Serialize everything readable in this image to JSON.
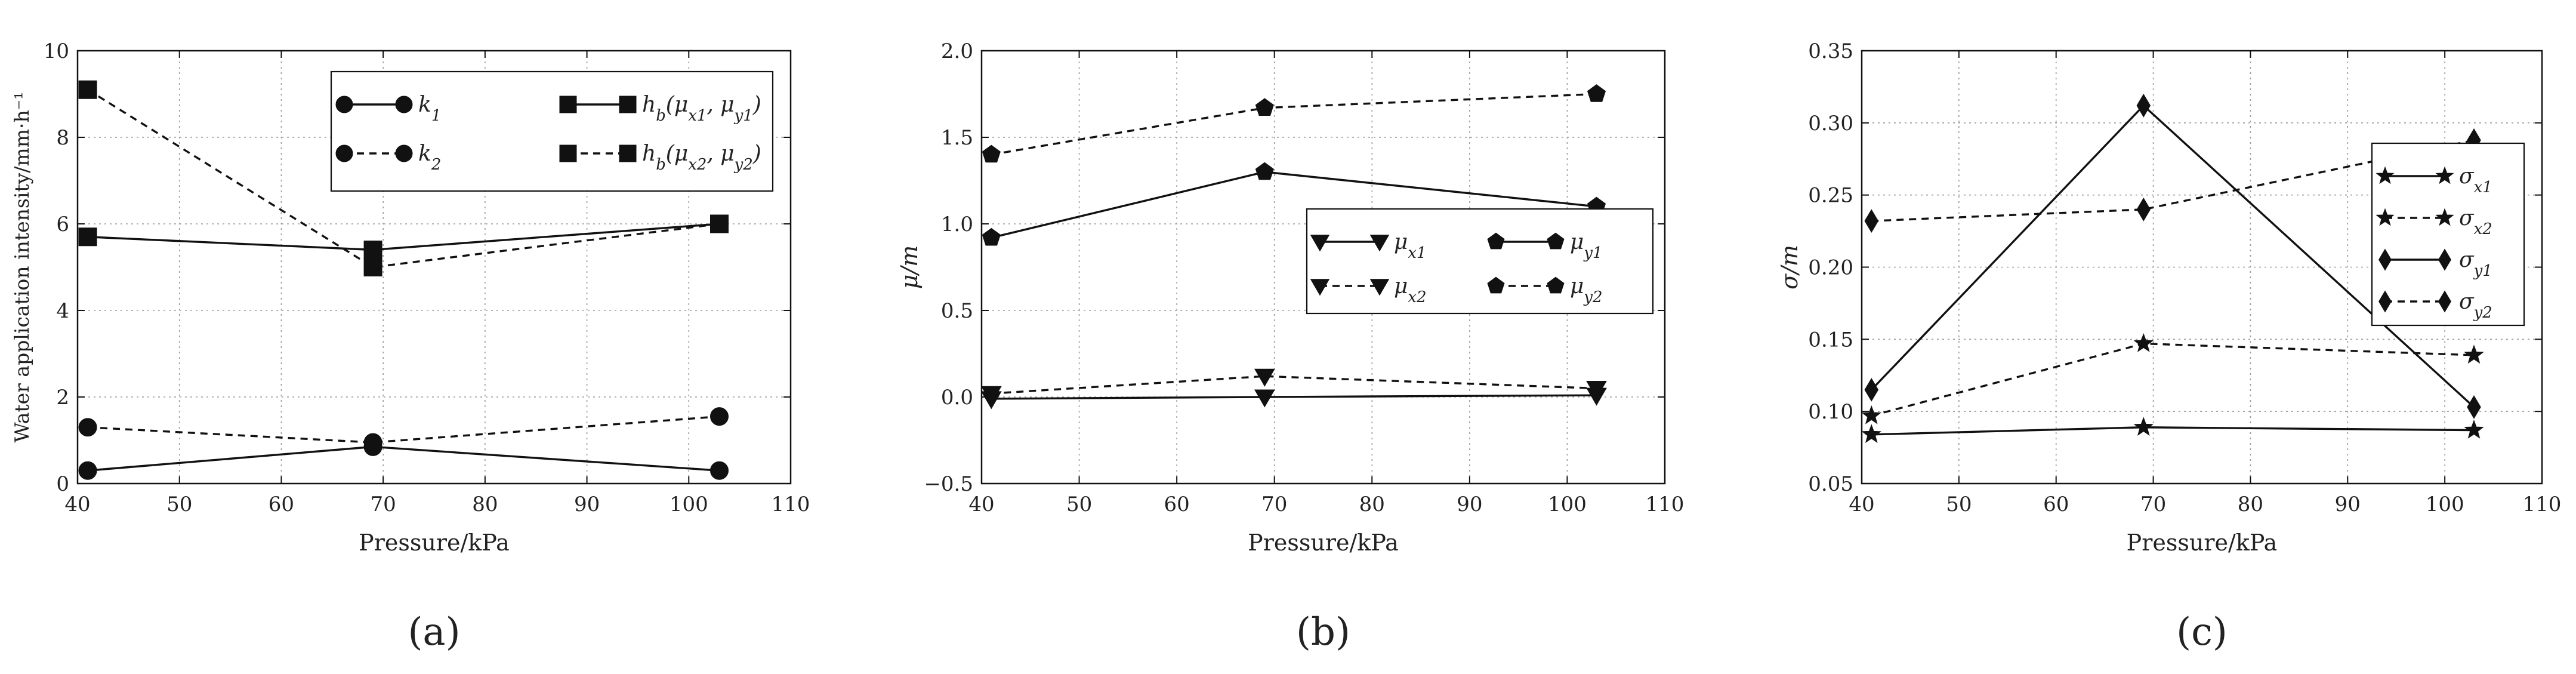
{
  "figure": {
    "panel_labels": [
      "(a)",
      "(b)",
      "(c)"
    ]
  },
  "chart_data": [
    {
      "type": "line",
      "panel": "(a)",
      "xlabel": "Pressure/kPa",
      "ylabel": "Water application intensity/mm·h⁻¹",
      "xlim": [
        40,
        110
      ],
      "ylim": [
        0,
        10
      ],
      "xticks": [
        40,
        50,
        60,
        70,
        80,
        90,
        100,
        110
      ],
      "yticks": [
        0,
        2,
        4,
        6,
        8,
        10
      ],
      "grid": true,
      "legend_position": "top-right",
      "legend_columns": 2,
      "x": [
        41,
        69,
        103
      ],
      "series": [
        {
          "name": "k₁",
          "values": [
            0.3,
            0.85,
            0.3
          ],
          "marker": "circle",
          "linestyle": "solid"
        },
        {
          "name": "k₂",
          "values": [
            1.3,
            0.95,
            1.55
          ],
          "marker": "circle",
          "linestyle": "dashed"
        },
        {
          "name": "h_b(μ_x1, μ_y1)",
          "values": [
            5.7,
            5.4,
            6.0
          ],
          "marker": "square",
          "linestyle": "solid"
        },
        {
          "name": "h_b(μ_x2, μ_y2)",
          "values": [
            9.1,
            5.0,
            6.0
          ],
          "marker": "square",
          "linestyle": "dashed"
        }
      ]
    },
    {
      "type": "line",
      "panel": "(b)",
      "xlabel": "Pressure/kPa",
      "ylabel": "μ/m",
      "xlim": [
        40,
        110
      ],
      "ylim": [
        -0.5,
        2.0
      ],
      "xticks": [
        40,
        50,
        60,
        70,
        80,
        90,
        100,
        110
      ],
      "yticks": [
        -0.5,
        0.0,
        0.5,
        1.0,
        1.5,
        2.0
      ],
      "ytick_labels": [
        "−0.5",
        "0.0",
        "0.5",
        "1.0",
        "1.5",
        "2.0"
      ],
      "grid": true,
      "legend_position": "center-right",
      "legend_columns": 2,
      "x": [
        41,
        69,
        103
      ],
      "series": [
        {
          "name": "μ_x1",
          "values": [
            -0.01,
            0.0,
            0.01
          ],
          "marker": "triangle-down",
          "linestyle": "solid"
        },
        {
          "name": "μ_x2",
          "values": [
            0.02,
            0.12,
            0.05
          ],
          "marker": "triangle-down",
          "linestyle": "dashed"
        },
        {
          "name": "μ_y1",
          "values": [
            0.92,
            1.3,
            1.1
          ],
          "marker": "pentagon",
          "linestyle": "solid"
        },
        {
          "name": "μ_y2",
          "values": [
            1.4,
            1.67,
            1.75
          ],
          "marker": "pentagon",
          "linestyle": "dashed"
        }
      ]
    },
    {
      "type": "line",
      "panel": "(c)",
      "xlabel": "Pressure/kPa",
      "ylabel": "σ/m",
      "xlim": [
        40,
        110
      ],
      "ylim": [
        0.05,
        0.35
      ],
      "xticks": [
        40,
        50,
        60,
        70,
        80,
        90,
        100,
        110
      ],
      "yticks": [
        0.05,
        0.1,
        0.15,
        0.2,
        0.25,
        0.3,
        0.35
      ],
      "ytick_labels": [
        "0.05",
        "0.10",
        "0.15",
        "0.20",
        "0.25",
        "0.30",
        "0.35"
      ],
      "grid": true,
      "legend_position": "right",
      "legend_columns": 1,
      "x": [
        41,
        69,
        103
      ],
      "series": [
        {
          "name": "σ_x1",
          "values": [
            0.084,
            0.089,
            0.087
          ],
          "marker": "star",
          "linestyle": "solid"
        },
        {
          "name": "σ_x2",
          "values": [
            0.097,
            0.147,
            0.139
          ],
          "marker": "star",
          "linestyle": "dashed"
        },
        {
          "name": "σ_y1",
          "values": [
            0.115,
            0.312,
            0.103
          ],
          "marker": "diamond",
          "linestyle": "solid"
        },
        {
          "name": "σ_y2",
          "values": [
            0.232,
            0.24,
            0.288
          ],
          "marker": "diamond",
          "linestyle": "dashed"
        }
      ]
    }
  ]
}
